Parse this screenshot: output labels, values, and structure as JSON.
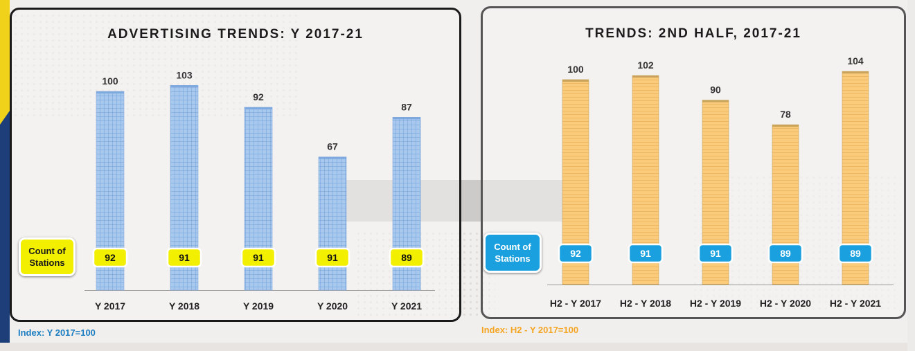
{
  "chart_data": [
    {
      "type": "bar",
      "title": "ADVERTISING TRENDS: Y 2017-21",
      "categories": [
        "Y 2017",
        "Y 2018",
        "Y 2019",
        "Y 2020",
        "Y 2021"
      ],
      "values": [
        100,
        103,
        92,
        67,
        87
      ],
      "count_label": "Count of Stations",
      "count_values": [
        92,
        91,
        91,
        91,
        89
      ],
      "footnote": "Index: Y 2017=100",
      "bar_color": "#a9c8ee",
      "count_badge_color": "#f2ef00",
      "ylim": [
        0,
        110
      ],
      "grid": false
    },
    {
      "type": "bar",
      "title": "TRENDS: 2ND HALF, 2017-21",
      "categories": [
        "H2 - Y 2017",
        "H2 - Y 2018",
        "H2 - Y 2019",
        "H2 - Y 2020",
        "H2 - Y 2021"
      ],
      "values": [
        100,
        102,
        90,
        78,
        104
      ],
      "count_label": "Count of Stations",
      "count_values": [
        92,
        91,
        91,
        89,
        89
      ],
      "footnote": "Index: H2 - Y 2017=100",
      "bar_color": "#fbcb7c",
      "count_badge_color": "#1aa0de",
      "ylim": [
        0,
        110
      ],
      "grid": false
    }
  ]
}
